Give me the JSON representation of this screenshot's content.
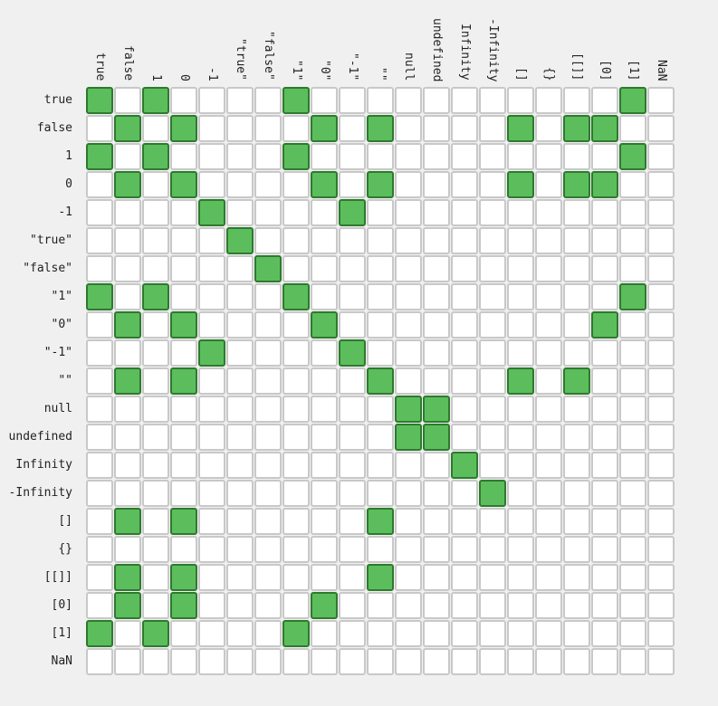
{
  "chart_data": {
    "type": "heatmap",
    "title": "",
    "xlabel": "",
    "ylabel": "",
    "columns": [
      "true",
      "false",
      "1",
      "0",
      "-1",
      "\"true\"",
      "\"false\"",
      "\"1\"",
      "\"0\"",
      "\"-1\"",
      "\"\"",
      "null",
      "undefined",
      "Infinity",
      "-Infinity",
      "[]",
      "{}",
      "[[]]",
      "[0]",
      "[1]",
      "NaN"
    ],
    "rows": [
      "true",
      "false",
      "1",
      "0",
      "-1",
      "\"true\"",
      "\"false\"",
      "\"1\"",
      "\"0\"",
      "\"-1\"",
      "\"\"",
      "null",
      "undefined",
      "Infinity",
      "-Infinity",
      "[]",
      "{}",
      "[[]]",
      "[0]",
      "[1]",
      "NaN"
    ],
    "values": [
      [
        1,
        0,
        1,
        0,
        0,
        0,
        0,
        1,
        0,
        0,
        0,
        0,
        0,
        0,
        0,
        0,
        0,
        0,
        0,
        1,
        0
      ],
      [
        0,
        1,
        0,
        1,
        0,
        0,
        0,
        0,
        1,
        0,
        1,
        0,
        0,
        0,
        0,
        1,
        0,
        1,
        1,
        0,
        0
      ],
      [
        1,
        0,
        1,
        0,
        0,
        0,
        0,
        1,
        0,
        0,
        0,
        0,
        0,
        0,
        0,
        0,
        0,
        0,
        0,
        1,
        0
      ],
      [
        0,
        1,
        0,
        1,
        0,
        0,
        0,
        0,
        1,
        0,
        1,
        0,
        0,
        0,
        0,
        1,
        0,
        1,
        1,
        0,
        0
      ],
      [
        0,
        0,
        0,
        0,
        1,
        0,
        0,
        0,
        0,
        1,
        0,
        0,
        0,
        0,
        0,
        0,
        0,
        0,
        0,
        0,
        0
      ],
      [
        0,
        0,
        0,
        0,
        0,
        1,
        0,
        0,
        0,
        0,
        0,
        0,
        0,
        0,
        0,
        0,
        0,
        0,
        0,
        0,
        0
      ],
      [
        0,
        0,
        0,
        0,
        0,
        0,
        1,
        0,
        0,
        0,
        0,
        0,
        0,
        0,
        0,
        0,
        0,
        0,
        0,
        0,
        0
      ],
      [
        1,
        0,
        1,
        0,
        0,
        0,
        0,
        1,
        0,
        0,
        0,
        0,
        0,
        0,
        0,
        0,
        0,
        0,
        0,
        1,
        0
      ],
      [
        0,
        1,
        0,
        1,
        0,
        0,
        0,
        0,
        1,
        0,
        0,
        0,
        0,
        0,
        0,
        0,
        0,
        0,
        1,
        0,
        0
      ],
      [
        0,
        0,
        0,
        0,
        1,
        0,
        0,
        0,
        0,
        1,
        0,
        0,
        0,
        0,
        0,
        0,
        0,
        0,
        0,
        0,
        0
      ],
      [
        0,
        1,
        0,
        1,
        0,
        0,
        0,
        0,
        0,
        0,
        1,
        0,
        0,
        0,
        0,
        1,
        0,
        1,
        0,
        0,
        0
      ],
      [
        0,
        0,
        0,
        0,
        0,
        0,
        0,
        0,
        0,
        0,
        0,
        1,
        1,
        0,
        0,
        0,
        0,
        0,
        0,
        0,
        0
      ],
      [
        0,
        0,
        0,
        0,
        0,
        0,
        0,
        0,
        0,
        0,
        0,
        1,
        1,
        0,
        0,
        0,
        0,
        0,
        0,
        0,
        0
      ],
      [
        0,
        0,
        0,
        0,
        0,
        0,
        0,
        0,
        0,
        0,
        0,
        0,
        0,
        1,
        0,
        0,
        0,
        0,
        0,
        0,
        0
      ],
      [
        0,
        0,
        0,
        0,
        0,
        0,
        0,
        0,
        0,
        0,
        0,
        0,
        0,
        0,
        1,
        0,
        0,
        0,
        0,
        0,
        0
      ],
      [
        0,
        1,
        0,
        1,
        0,
        0,
        0,
        0,
        0,
        0,
        1,
        0,
        0,
        0,
        0,
        0,
        0,
        0,
        0,
        0,
        0
      ],
      [
        0,
        0,
        0,
        0,
        0,
        0,
        0,
        0,
        0,
        0,
        0,
        0,
        0,
        0,
        0,
        0,
        0,
        0,
        0,
        0,
        0
      ],
      [
        0,
        1,
        0,
        1,
        0,
        0,
        0,
        0,
        0,
        0,
        1,
        0,
        0,
        0,
        0,
        0,
        0,
        0,
        0,
        0,
        0
      ],
      [
        0,
        1,
        0,
        1,
        0,
        0,
        0,
        0,
        1,
        0,
        0,
        0,
        0,
        0,
        0,
        0,
        0,
        0,
        0,
        0,
        0
      ],
      [
        1,
        0,
        1,
        0,
        0,
        0,
        0,
        1,
        0,
        0,
        0,
        0,
        0,
        0,
        0,
        0,
        0,
        0,
        0,
        0,
        0
      ],
      [
        0,
        0,
        0,
        0,
        0,
        0,
        0,
        0,
        0,
        0,
        0,
        0,
        0,
        0,
        0,
        0,
        0,
        0,
        0,
        0,
        0
      ]
    ],
    "legend": "none",
    "grid": true,
    "colors": {
      "on_fill": "#5cbd5c",
      "on_border": "#2e7a2e",
      "off_fill": "#ffffff",
      "off_border": "#c8c8c8"
    }
  }
}
